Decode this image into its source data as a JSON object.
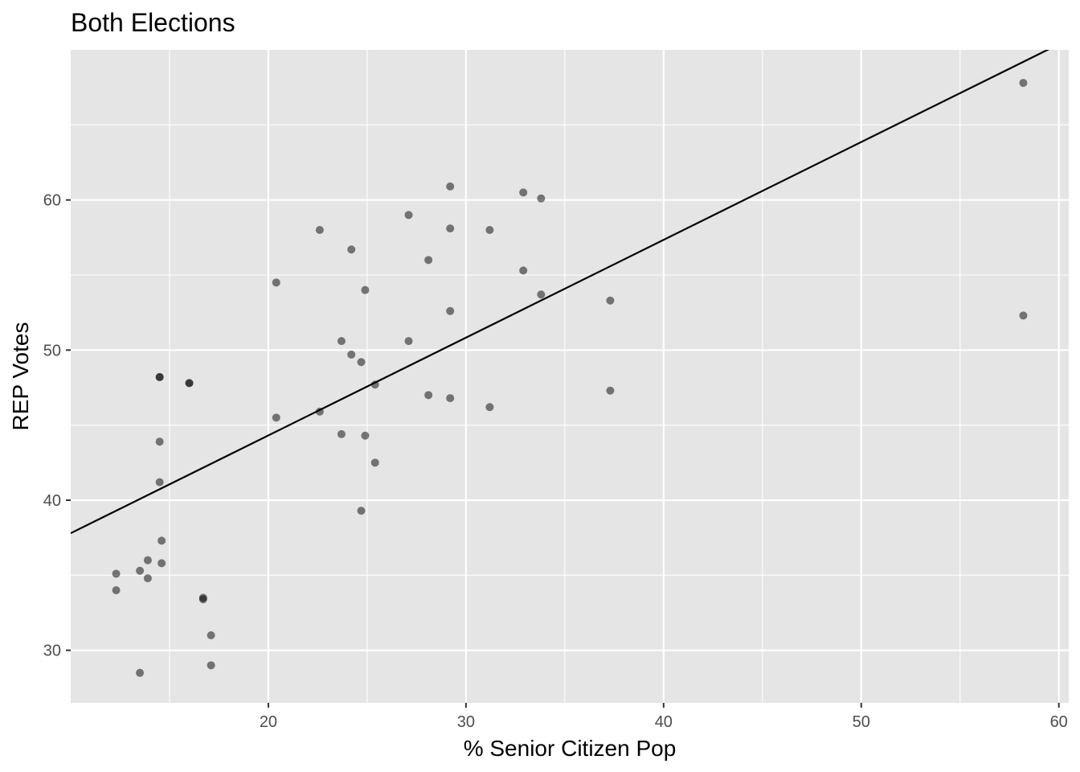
{
  "chart_data": {
    "type": "scatter",
    "title": "Both Elections",
    "xlabel": "% Senior Citizen Pop",
    "ylabel": "REP Votes",
    "xlim": [
      10.0,
      60.5
    ],
    "ylim": [
      26.5,
      70.0
    ],
    "x_ticks": [
      20,
      30,
      40,
      50,
      60
    ],
    "y_ticks": [
      30,
      40,
      50,
      60
    ],
    "x_minor_ticks": [
      15,
      25,
      35,
      45,
      55
    ],
    "y_minor_ticks": [
      35,
      45,
      55,
      65
    ],
    "grid": true,
    "panel_color": "#e5e5e5",
    "grid_color": "#ffffff",
    "point_color": "#000000",
    "point_opacity": 0.5,
    "line_color": "#000000",
    "trend_line": {
      "x": [
        10.0,
        60.5
      ],
      "y": [
        37.8,
        70.7
      ]
    },
    "points": [
      {
        "x": 58.2,
        "y": 67.8
      },
      {
        "x": 58.2,
        "y": 52.3
      },
      {
        "x": 37.3,
        "y": 53.3
      },
      {
        "x": 37.3,
        "y": 47.3
      },
      {
        "x": 33.8,
        "y": 60.1
      },
      {
        "x": 33.8,
        "y": 53.7
      },
      {
        "x": 32.9,
        "y": 60.5
      },
      {
        "x": 32.9,
        "y": 55.3
      },
      {
        "x": 31.2,
        "y": 58.0
      },
      {
        "x": 31.2,
        "y": 46.2
      },
      {
        "x": 29.2,
        "y": 60.9
      },
      {
        "x": 29.2,
        "y": 58.1
      },
      {
        "x": 29.2,
        "y": 52.6
      },
      {
        "x": 29.2,
        "y": 46.8
      },
      {
        "x": 28.1,
        "y": 56.0
      },
      {
        "x": 28.1,
        "y": 47.0
      },
      {
        "x": 27.1,
        "y": 59.0
      },
      {
        "x": 27.1,
        "y": 50.6
      },
      {
        "x": 25.4,
        "y": 47.7
      },
      {
        "x": 25.4,
        "y": 42.5
      },
      {
        "x": 24.9,
        "y": 54.0
      },
      {
        "x": 24.9,
        "y": 44.3
      },
      {
        "x": 24.7,
        "y": 49.2
      },
      {
        "x": 24.7,
        "y": 39.3
      },
      {
        "x": 24.2,
        "y": 56.7
      },
      {
        "x": 24.2,
        "y": 49.7
      },
      {
        "x": 23.7,
        "y": 50.6
      },
      {
        "x": 23.7,
        "y": 44.4
      },
      {
        "x": 22.6,
        "y": 58.0
      },
      {
        "x": 22.6,
        "y": 45.9
      },
      {
        "x": 20.4,
        "y": 54.5
      },
      {
        "x": 20.4,
        "y": 45.5
      },
      {
        "x": 17.1,
        "y": 31.0
      },
      {
        "x": 17.1,
        "y": 29.0
      },
      {
        "x": 16.7,
        "y": 33.5
      },
      {
        "x": 16.7,
        "y": 33.4
      },
      {
        "x": 16.0,
        "y": 47.8
      },
      {
        "x": 16.0,
        "y": 47.8
      },
      {
        "x": 14.6,
        "y": 37.3
      },
      {
        "x": 14.6,
        "y": 35.8
      },
      {
        "x": 14.5,
        "y": 48.2
      },
      {
        "x": 14.5,
        "y": 48.2
      },
      {
        "x": 14.5,
        "y": 43.9
      },
      {
        "x": 14.5,
        "y": 41.2
      },
      {
        "x": 13.9,
        "y": 36.0
      },
      {
        "x": 13.9,
        "y": 34.8
      },
      {
        "x": 13.5,
        "y": 35.3
      },
      {
        "x": 13.5,
        "y": 28.5
      },
      {
        "x": 12.3,
        "y": 35.1
      },
      {
        "x": 12.3,
        "y": 34.0
      }
    ]
  }
}
